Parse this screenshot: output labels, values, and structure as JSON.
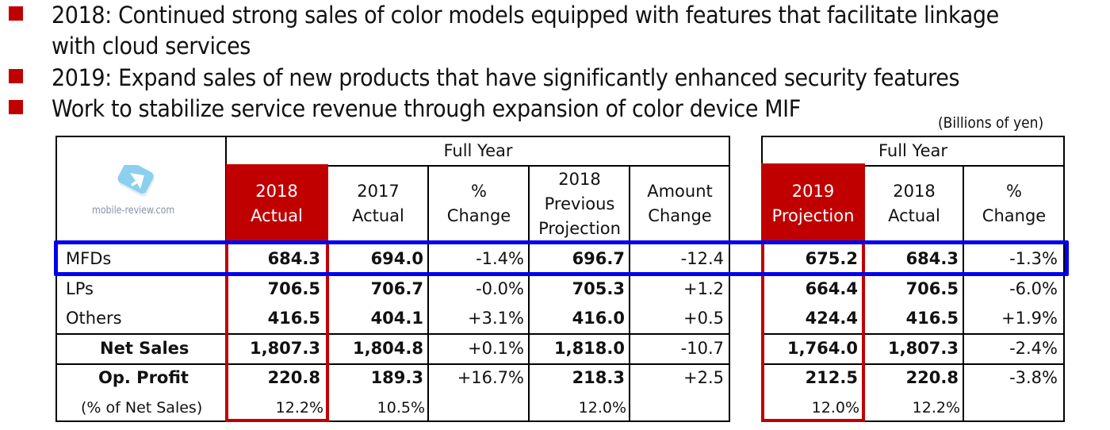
{
  "bullets": [
    {
      "line1": "2018: Continued strong sales of color models equipped with features that facilitate linkage",
      "line2": "with cloud services"
    },
    {
      "line1": "2019: Expand sales of new products that have significantly enhanced security features"
    },
    {
      "line1": "Work to stabilize service revenue through expansion of color device MIF"
    }
  ],
  "units": "(Billions of yen)",
  "watermark": "mobile-review.com",
  "colors": {
    "accent_red": "#c00000",
    "highlight_blue": "#0000ee"
  },
  "left_table": {
    "group_header": "Full Year",
    "columns": [
      {
        "line1": "2018",
        "line2": "Actual",
        "highlighted": true
      },
      {
        "line1": "2017",
        "line2": "Actual"
      },
      {
        "line1": "%",
        "line2": "Change"
      },
      {
        "line1": "2018",
        "line2": "Previous",
        "line3": "Projection"
      },
      {
        "line1": "Amount",
        "line2": "Change"
      }
    ]
  },
  "right_table": {
    "group_header": "Full Year",
    "columns": [
      {
        "line1": "2019",
        "line2": "Projection",
        "highlighted": true
      },
      {
        "line1": "2018",
        "line2": "Actual"
      },
      {
        "line1": "%",
        "line2": "Change"
      }
    ]
  },
  "rows": [
    {
      "label": "MFDs",
      "highlighted": true,
      "left": [
        "684.3",
        "694.0",
        "-1.4%",
        "696.7",
        "-12.4"
      ],
      "right": [
        "675.2",
        "684.3",
        "-1.3%"
      ]
    },
    {
      "label": "LPs",
      "left": [
        "706.5",
        "706.7",
        "-0.0%",
        "705.3",
        "+1.2"
      ],
      "right": [
        "664.4",
        "706.5",
        "-6.0%"
      ]
    },
    {
      "label": "Others",
      "left": [
        "416.5",
        "404.1",
        "+3.1%",
        "416.0",
        "+0.5"
      ],
      "right": [
        "424.4",
        "416.5",
        "+1.9%"
      ]
    },
    {
      "label": "Net Sales",
      "left": [
        "1,807.3",
        "1,804.8",
        "+0.1%",
        "1,818.0",
        "-10.7"
      ],
      "right": [
        "1,764.0",
        "1,807.3",
        "-2.4%"
      ]
    },
    {
      "label": "Op. Profit",
      "left": [
        "220.8",
        "189.3",
        "+16.7%",
        "218.3",
        "+2.5"
      ],
      "right": [
        "212.5",
        "220.8",
        "-3.8%"
      ]
    },
    {
      "label": "(% of Net Sales)",
      "left": [
        "12.2%",
        "10.5%",
        "",
        "12.0%",
        ""
      ],
      "right": [
        "12.0%",
        "12.2%",
        ""
      ]
    }
  ]
}
